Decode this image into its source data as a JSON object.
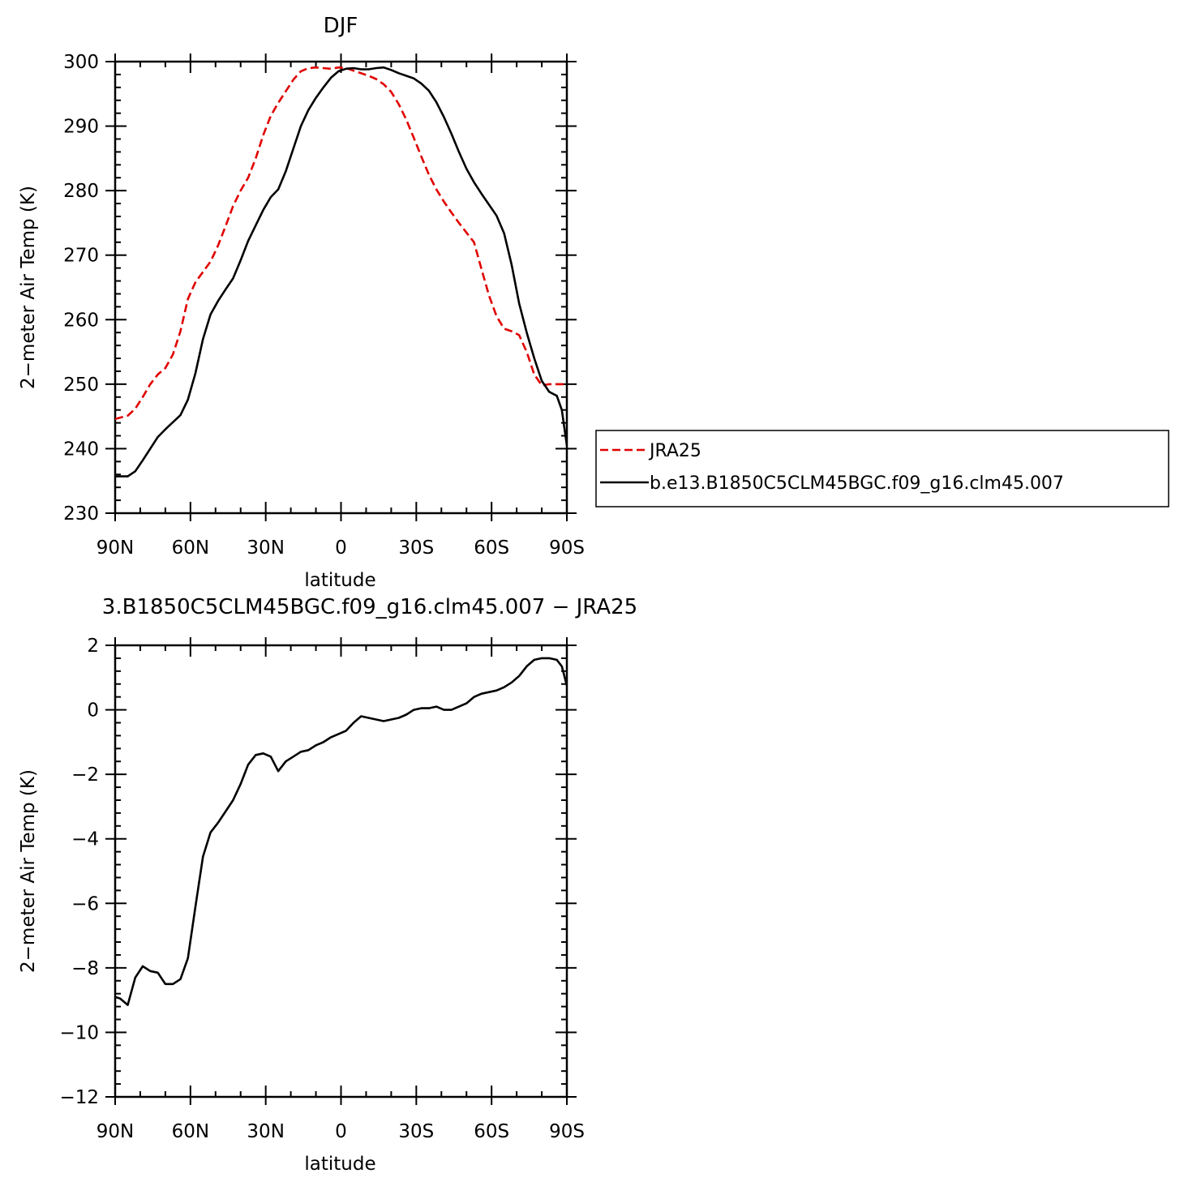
{
  "chart_data": [
    {
      "type": "line",
      "title": "DJF",
      "xlabel": "latitude",
      "ylabel": "2−meter Air Temp (K)",
      "xlim": [
        90,
        -90
      ],
      "ylim": [
        230,
        300
      ],
      "x_ticks": [
        {
          "value": 90,
          "label": "90N"
        },
        {
          "value": 60,
          "label": "60N"
        },
        {
          "value": 30,
          "label": "30N"
        },
        {
          "value": 0,
          "label": "0"
        },
        {
          "value": -30,
          "label": "30S"
        },
        {
          "value": -60,
          "label": "60S"
        },
        {
          "value": -90,
          "label": "90S"
        }
      ],
      "y_ticks": [
        {
          "value": 300,
          "label": "300"
        },
        {
          "value": 290,
          "label": "290"
        },
        {
          "value": 280,
          "label": "280"
        },
        {
          "value": 270,
          "label": "270"
        },
        {
          "value": 260,
          "label": "260"
        },
        {
          "value": 250,
          "label": "250"
        },
        {
          "value": 240,
          "label": "240"
        },
        {
          "value": 230,
          "label": "230"
        }
      ],
      "legend": {
        "position": "right"
      },
      "series": [
        {
          "name": "JRA25",
          "color": "#e00000",
          "style": "dashed",
          "x": [
            90,
            85,
            82,
            79,
            76,
            73,
            70,
            67,
            64,
            61,
            58,
            55,
            52,
            49,
            46,
            43,
            40,
            37,
            34,
            31,
            28,
            25,
            22,
            19,
            16,
            13,
            10,
            7,
            4,
            1,
            -2,
            -5,
            -8,
            -11,
            -14,
            -17,
            -20,
            -23,
            -26,
            -29,
            -32,
            -35,
            -38,
            -41,
            -44,
            -47,
            -50,
            -53,
            -56,
            -59,
            -62,
            -65,
            -68,
            -71,
            -74,
            -77,
            -80,
            -83,
            -86,
            -88,
            -90
          ],
          "y": [
            244.6,
            245.1,
            246.2,
            248.0,
            250.0,
            251.5,
            252.5,
            254.6,
            258.2,
            263.2,
            265.8,
            267.4,
            269.0,
            271.5,
            274.5,
            277.6,
            280.0,
            282.0,
            285.0,
            288.6,
            291.6,
            293.6,
            295.4,
            297.2,
            298.5,
            299.0,
            299.1,
            299.0,
            298.9,
            299.1,
            299.0,
            298.6,
            298.2,
            297.8,
            297.3,
            296.5,
            295.3,
            293.4,
            291.0,
            288.2,
            285.3,
            282.5,
            280.2,
            278.3,
            276.6,
            275.0,
            273.5,
            272.0,
            267.8,
            263.7,
            260.5,
            258.6,
            258.2,
            257.6,
            255.0,
            251.5,
            249.8,
            250.0,
            250.0,
            250.0,
            250.0
          ]
        },
        {
          "name": "b.e13.B1850C5CLM45BGC.f09_g16.clm45.007",
          "color": "#000000",
          "style": "solid",
          "x": [
            90,
            88,
            85,
            82,
            79,
            76,
            73,
            70,
            67,
            64,
            61,
            58,
            55,
            52,
            49,
            46,
            43,
            40,
            37,
            34,
            31,
            28,
            25,
            22,
            19,
            16,
            13,
            10,
            7,
            4,
            1,
            -2,
            -5,
            -8,
            -11,
            -14,
            -17,
            -20,
            -23,
            -26,
            -29,
            -32,
            -35,
            -38,
            -41,
            -44,
            -47,
            -50,
            -53,
            -56,
            -59,
            -62,
            -65,
            -68,
            -71,
            -74,
            -77,
            -80,
            -83,
            -86,
            -88,
            -90
          ],
          "y": [
            235.7,
            235.7,
            235.7,
            236.5,
            238.2,
            240.0,
            241.8,
            243.0,
            244.1,
            245.2,
            247.6,
            251.7,
            257.0,
            260.8,
            262.9,
            264.7,
            266.4,
            269.2,
            272.2,
            274.6,
            277.0,
            279.0,
            280.2,
            283.0,
            286.5,
            290.0,
            292.5,
            294.4,
            296.0,
            297.5,
            298.5,
            298.9,
            299.0,
            298.8,
            298.8,
            299.0,
            299.1,
            298.7,
            298.2,
            297.8,
            297.4,
            296.6,
            295.5,
            293.7,
            291.4,
            288.8,
            286.0,
            283.4,
            281.3,
            279.5,
            277.8,
            276.1,
            273.4,
            268.5,
            262.5,
            258.0,
            254.0,
            250.5,
            248.8,
            248.2,
            246.0,
            240.5
          ]
        }
      ]
    },
    {
      "type": "line",
      "title": "3.B1850C5CLM45BGC.f09_g16.clm45.007 − JRA25",
      "xlabel": "latitude",
      "ylabel": "2−meter Air Temp (K)",
      "xlim": [
        90,
        -90
      ],
      "ylim": [
        -12,
        2
      ],
      "x_ticks": [
        {
          "value": 90,
          "label": "90N"
        },
        {
          "value": 60,
          "label": "60N"
        },
        {
          "value": 30,
          "label": "30N"
        },
        {
          "value": 0,
          "label": "0"
        },
        {
          "value": -30,
          "label": "30S"
        },
        {
          "value": -60,
          "label": "60S"
        },
        {
          "value": -90,
          "label": "90S"
        }
      ],
      "y_ticks": [
        {
          "value": 2,
          "label": "2"
        },
        {
          "value": 0,
          "label": "0"
        },
        {
          "value": -2,
          "label": "−2"
        },
        {
          "value": -4,
          "label": "−4"
        },
        {
          "value": -6,
          "label": "−6"
        },
        {
          "value": -8,
          "label": "−8"
        },
        {
          "value": -10,
          "label": "−10"
        },
        {
          "value": -12,
          "label": "−12"
        }
      ],
      "series": [
        {
          "color": "#000000",
          "style": "solid",
          "x": [
            90,
            88,
            85,
            82,
            79,
            76,
            73,
            70,
            67,
            64,
            61,
            58,
            55,
            52,
            49,
            46,
            43,
            40,
            37,
            34,
            31,
            28,
            25,
            22,
            19,
            16,
            13,
            10,
            7,
            4,
            1,
            -2,
            -5,
            -8,
            -11,
            -14,
            -17,
            -20,
            -23,
            -26,
            -29,
            -32,
            -35,
            -38,
            -41,
            -44,
            -47,
            -50,
            -53,
            -56,
            -59,
            -62,
            -65,
            -68,
            -71,
            -74,
            -77,
            -80,
            -83,
            -86,
            -88,
            -90
          ],
          "y": [
            -8.9,
            -8.95,
            -9.15,
            -8.3,
            -7.95,
            -8.1,
            -8.15,
            -8.5,
            -8.5,
            -8.35,
            -7.7,
            -6.1,
            -4.55,
            -3.8,
            -3.5,
            -3.15,
            -2.8,
            -2.3,
            -1.7,
            -1.4,
            -1.35,
            -1.45,
            -1.9,
            -1.6,
            -1.45,
            -1.3,
            -1.25,
            -1.1,
            -1.0,
            -0.85,
            -0.75,
            -0.65,
            -0.4,
            -0.2,
            -0.25,
            -0.3,
            -0.35,
            -0.3,
            -0.25,
            -0.15,
            0.0,
            0.05,
            0.05,
            0.1,
            0.0,
            0.0,
            0.1,
            0.2,
            0.4,
            0.5,
            0.55,
            0.6,
            0.7,
            0.85,
            1.05,
            1.35,
            1.55,
            1.6,
            1.6,
            1.55,
            1.35,
            0.75
          ]
        }
      ]
    }
  ]
}
